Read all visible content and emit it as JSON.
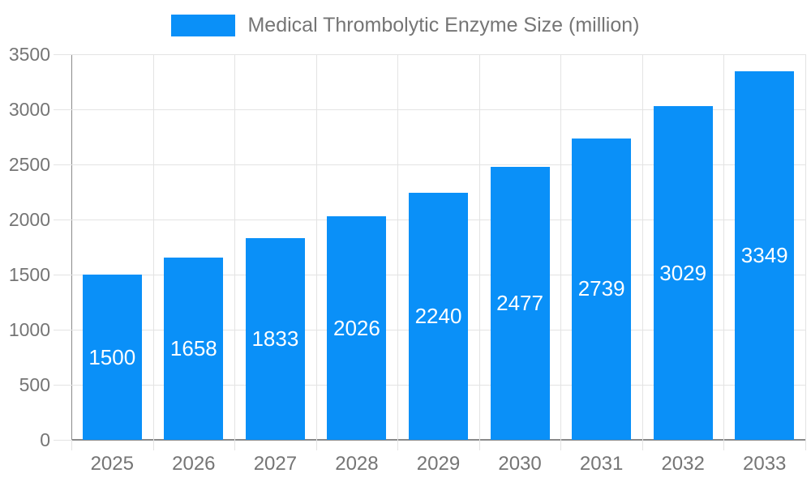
{
  "legend": {
    "label": "Medical Thrombolytic Enzyme Size (million)"
  },
  "chart_data": {
    "type": "bar",
    "title": "Medical Thrombolytic Enzyme Size (million)",
    "categories": [
      "2025",
      "2026",
      "2027",
      "2028",
      "2029",
      "2030",
      "2031",
      "2032",
      "2033"
    ],
    "series": [
      {
        "name": "Medical Thrombolytic Enzyme Size (million)",
        "values": [
          1500,
          1658,
          1833,
          2026,
          2240,
          2477,
          2739,
          3029,
          3349
        ]
      }
    ],
    "value_labels_shown": true,
    "xlabel": "",
    "ylabel": "",
    "ylim": [
      0,
      3500
    ],
    "ytick_step": 500,
    "yticks": [
      "0",
      "500",
      "1000",
      "1500",
      "2000",
      "2500",
      "3000",
      "3500"
    ],
    "grid": true,
    "legend_position": "top-center",
    "colors": {
      "bar": "#0a90f8",
      "grid": "#e3e3e3",
      "axis": "#8a8a8a",
      "tick_text": "#757575",
      "value_label_text": "#ffffff",
      "background": "#ffffff"
    }
  }
}
